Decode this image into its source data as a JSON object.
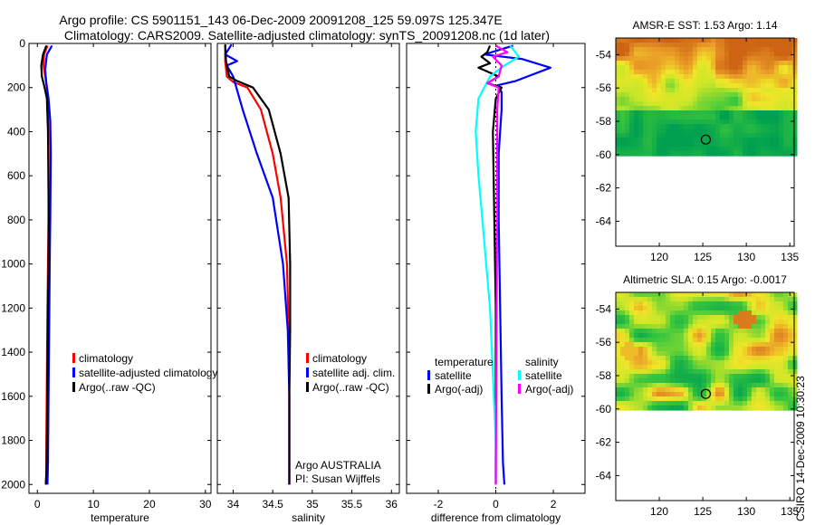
{
  "title": {
    "line1": "Argo profile: CS 5901151_143 06-Dec-2009 20091208_125 59.097S 125.347E",
    "line2": "Climatology: CARS2009. Satellite-adjusted climatology: synTS_20091208.nc (1d later)"
  },
  "credit": "CSIRO 14-Dec-2009 10:30:23",
  "colors": {
    "red": "#ff0000",
    "blue": "#0000ff",
    "black": "#000000",
    "cyan": "#00ffff",
    "magenta": "#ff00ff"
  },
  "chart_data": [
    {
      "type": "line",
      "name": "temperature-profile",
      "xlabel": "temperature",
      "xlim": [
        -1.5,
        31
      ],
      "ylim": [
        0,
        2040
      ],
      "xticks": [
        0,
        10,
        20,
        30
      ],
      "yticks": [
        0,
        200,
        400,
        600,
        800,
        1000,
        1200,
        1400,
        1600,
        1800,
        2000
      ],
      "legend": [
        "climatology",
        "satellite-adjusted climatology",
        "Argo(..raw -QC)"
      ],
      "legend_position": "bottom-right",
      "series": [
        {
          "name": "climatology",
          "color": "red",
          "x": [
            1.8,
            1.2,
            1.1,
            1.4,
            1.7,
            1.9,
            2.0,
            2.0,
            1.9,
            1.8,
            1.7,
            1.6,
            1.6,
            1.5
          ],
          "y": [
            10,
            50,
            100,
            150,
            200,
            300,
            500,
            800,
            1000,
            1200,
            1500,
            1800,
            1950,
            2000
          ]
        },
        {
          "name": "satellite-adjusted climatology",
          "color": "blue",
          "x": [
            2.6,
            1.7,
            1.4,
            1.6,
            2.0,
            2.3,
            2.4,
            2.3,
            2.2,
            2.1,
            2.0,
            1.9,
            1.8
          ],
          "y": [
            10,
            50,
            120,
            180,
            250,
            350,
            500,
            800,
            1000,
            1300,
            1600,
            1900,
            2000
          ]
        },
        {
          "name": "Argo(..raw -QC)",
          "color": "black",
          "x": [
            1.6,
            1.0,
            0.7,
            0.8,
            1.2,
            1.7,
            1.9,
            2.0,
            2.0,
            1.9,
            1.8,
            1.7,
            1.6,
            1.5
          ],
          "y": [
            10,
            50,
            100,
            150,
            190,
            250,
            400,
            700,
            1000,
            1200,
            1500,
            1800,
            1950,
            2000
          ]
        }
      ]
    },
    {
      "type": "line",
      "name": "salinity-profile",
      "xlabel": "salinity",
      "xlim": [
        33.8,
        36.1
      ],
      "ylim": [
        0,
        2040
      ],
      "xticks": [
        34,
        34.5,
        35,
        35.5,
        36
      ],
      "legend": [
        "climatology",
        "satellite adj. clim.",
        "Argo(..raw -QC)"
      ],
      "legend_position": "bottom-right",
      "annotation": [
        "Argo AUSTRALIA",
        "PI: Susan Wijffels"
      ],
      "series": [
        {
          "name": "climatology",
          "color": "red",
          "x": [
            33.9,
            33.9,
            33.92,
            34.0,
            34.18,
            34.35,
            34.5,
            34.6,
            34.68,
            34.7,
            34.71,
            34.71
          ],
          "y": [
            5,
            80,
            150,
            175,
            200,
            300,
            500,
            700,
            1000,
            1300,
            1600,
            2000
          ]
        },
        {
          "name": "satellite adj. clim.",
          "color": "blue",
          "x": [
            33.98,
            33.9,
            34.05,
            33.92,
            34.0,
            34.04,
            34.12,
            34.3,
            34.5,
            34.63,
            34.69,
            34.71,
            34.71
          ],
          "y": [
            5,
            50,
            80,
            100,
            150,
            200,
            300,
            500,
            700,
            1000,
            1300,
            1600,
            2000
          ]
        },
        {
          "name": "Argo(..raw -QC)",
          "color": "black",
          "x": [
            33.9,
            33.91,
            33.95,
            34.05,
            34.25,
            34.45,
            34.6,
            34.7,
            34.72,
            34.72,
            34.71,
            34.71
          ],
          "y": [
            5,
            80,
            150,
            170,
            200,
            300,
            500,
            700,
            1000,
            1300,
            1600,
            2000
          ]
        }
      ]
    },
    {
      "type": "line",
      "name": "difference-profile",
      "xlabel": "difference from climatology",
      "xlim": [
        -3.1,
        3.1
      ],
      "ylim": [
        0,
        2040
      ],
      "xticks": [
        -2,
        0,
        2
      ],
      "legend_groups": [
        {
          "title": "temperature",
          "items": [
            {
              "label": "satellite",
              "color": "blue"
            },
            {
              "label": "Argo(-adj)",
              "color": "black"
            }
          ]
        },
        {
          "title": "salinity",
          "items": [
            {
              "label": "satellite",
              "color": "cyan"
            },
            {
              "label": "Argo(-adj)",
              "color": "magenta"
            }
          ]
        }
      ],
      "series": [
        {
          "name": "temperature satellite",
          "color": "blue",
          "x": [
            0.6,
            -0.4,
            0.9,
            1.9,
            0.7,
            0.05,
            0.2,
            0.2,
            0.1,
            0.1,
            0.15,
            0.2,
            0.25,
            0.3
          ],
          "y": [
            10,
            50,
            70,
            110,
            170,
            190,
            220,
            300,
            500,
            800,
            1200,
            1600,
            1900,
            2000
          ]
        },
        {
          "name": "temperature Argo(-adj)",
          "color": "black",
          "x": [
            -0.2,
            -0.3,
            -0.5,
            -0.2,
            -0.6,
            0.1,
            -0.3,
            0.2,
            0.0,
            -0.1,
            -0.05,
            0.0,
            0.0,
            0.0
          ],
          "y": [
            10,
            40,
            60,
            90,
            110,
            150,
            180,
            200,
            250,
            400,
            800,
            1200,
            1600,
            2000
          ]
        },
        {
          "name": "salinity satellite",
          "color": "cyan",
          "x": [
            0.5,
            0.8,
            0.3,
            -0.2,
            -0.6,
            -0.7,
            -0.6,
            -0.4,
            -0.2,
            -0.1,
            0.0,
            0.0
          ],
          "y": [
            10,
            60,
            100,
            150,
            250,
            400,
            600,
            900,
            1200,
            1500,
            1800,
            2000
          ]
        },
        {
          "name": "salinity Argo(-adj)",
          "color": "magenta",
          "x": [
            0.0,
            0.4,
            -0.1,
            0.2,
            0.1,
            -0.3,
            0.1,
            0.05,
            0.05,
            0.02,
            0.0
          ],
          "y": [
            10,
            40,
            60,
            100,
            150,
            180,
            200,
            300,
            700,
            1500,
            2000
          ]
        }
      ]
    },
    {
      "type": "heatmap",
      "name": "sst-map",
      "title": "AMSR-E SST: 1.53 Argo: 1.14",
      "xlim": [
        115,
        135.5
      ],
      "ylim": [
        -65.5,
        -53
      ],
      "xticks": [
        120,
        125,
        130,
        135
      ],
      "yticks": [
        -54,
        -56,
        -58,
        -60,
        -62,
        -64
      ],
      "data_lat_range": [
        -60.1,
        -53
      ],
      "argo_position": {
        "lon": 125.347,
        "lat": -59.097
      }
    },
    {
      "type": "heatmap",
      "name": "sla-map",
      "title": "Altimetric SLA: 0.15 Argo: -0.0017",
      "xlim": [
        115,
        135.5
      ],
      "ylim": [
        -65.5,
        -53
      ],
      "xticks": [
        120,
        125,
        130,
        135
      ],
      "yticks": [
        -54,
        -56,
        -58,
        -60,
        -62,
        -64
      ],
      "data_lat_range": [
        -60.1,
        -53
      ],
      "argo_position": {
        "lon": 125.347,
        "lat": -59.097
      }
    }
  ]
}
